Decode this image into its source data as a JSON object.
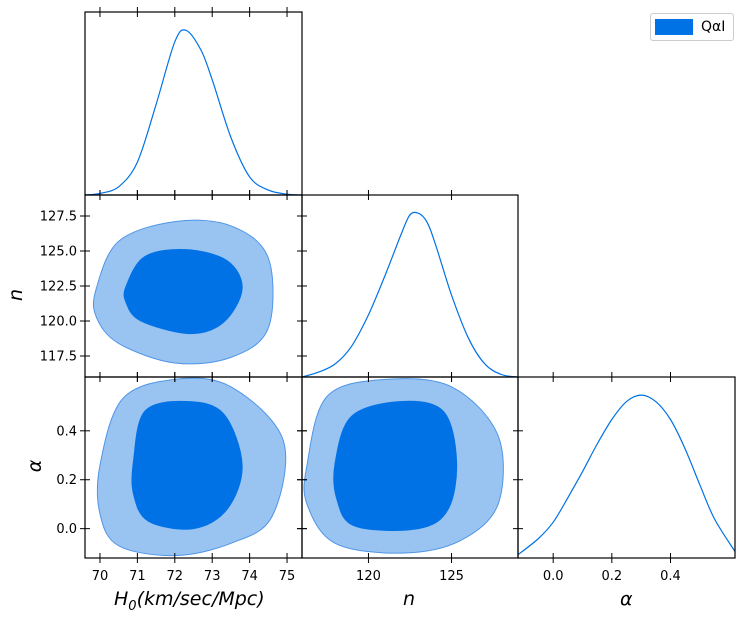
{
  "chart_data": {
    "type": "triangle-corner-plot",
    "legend": {
      "label": "QαI",
      "color": "#0072e6",
      "placement": "top-right"
    },
    "colors": {
      "inner": "#0072e6",
      "outer": "#99c4f2",
      "edge": "#4f95e6",
      "line": "#0072e6"
    },
    "labels": {
      "H0": {
        "base": "H",
        "sub": "0",
        "rest": "(km/sec/Mpc)"
      },
      "n": "n",
      "alpha": "α"
    },
    "ticks": {
      "H0": [
        "70",
        "71",
        "72",
        "73",
        "74",
        "75"
      ],
      "n_x": [
        "120",
        "125"
      ],
      "n_y": [
        "117.5",
        "120.0",
        "122.5",
        "125.0",
        "127.5"
      ],
      "alpha_x": [
        "0.0",
        "0.2",
        "0.4"
      ],
      "alpha_y": [
        "0.0",
        "0.2",
        "0.4"
      ]
    },
    "ranges": {
      "H0": [
        69.6,
        75.4
      ],
      "n": [
        116,
        129
      ],
      "alpha": [
        -0.12,
        0.62
      ]
    },
    "marginals": {
      "H0": {
        "x": [
          69.6,
          70.0,
          70.5,
          71.0,
          71.5,
          72.0,
          72.3,
          72.7,
          73.0,
          73.5,
          74.0,
          74.5,
          75.0,
          75.4
        ],
        "y": [
          0.0,
          0.01,
          0.05,
          0.2,
          0.55,
          0.93,
          1.0,
          0.88,
          0.7,
          0.35,
          0.11,
          0.03,
          0.005,
          0.0
        ]
      },
      "n": {
        "x": [
          116,
          117,
          118,
          119,
          120,
          121,
          122,
          122.5,
          123,
          123.5,
          124,
          125,
          126,
          127,
          128,
          129
        ],
        "y": [
          0.0,
          0.03,
          0.08,
          0.19,
          0.38,
          0.62,
          0.88,
          0.99,
          1.0,
          0.95,
          0.82,
          0.5,
          0.24,
          0.08,
          0.015,
          0.0
        ]
      },
      "alpha": {
        "x": [
          -0.12,
          -0.05,
          0.0,
          0.05,
          0.1,
          0.15,
          0.2,
          0.25,
          0.3,
          0.35,
          0.4,
          0.45,
          0.5,
          0.55,
          0.62
        ],
        "y": [
          0.02,
          0.12,
          0.22,
          0.37,
          0.53,
          0.7,
          0.85,
          0.96,
          1.0,
          0.96,
          0.85,
          0.67,
          0.45,
          0.24,
          0.04
        ]
      }
    },
    "contours": {
      "H0_n": {
        "outer": [
          [
            69.9,
            122.3
          ],
          [
            70.5,
            125.7
          ],
          [
            72.0,
            127.1
          ],
          [
            73.5,
            126.8
          ],
          [
            74.5,
            124.5
          ],
          [
            74.5,
            119.5
          ],
          [
            73.5,
            117.4
          ],
          [
            72.0,
            117.0
          ],
          [
            70.5,
            118.4
          ],
          [
            69.9,
            120.3
          ]
        ],
        "inner": [
          [
            70.7,
            122.5
          ],
          [
            71.2,
            124.6
          ],
          [
            72.3,
            125.1
          ],
          [
            73.4,
            124.3
          ],
          [
            73.8,
            122.3
          ],
          [
            73.3,
            119.9
          ],
          [
            72.4,
            119.1
          ],
          [
            71.1,
            120.0
          ],
          [
            70.7,
            121.3
          ]
        ]
      },
      "H0_alpha": {
        "outer": [
          [
            70.0,
            0.26
          ],
          [
            70.6,
            0.53
          ],
          [
            72.0,
            0.61
          ],
          [
            73.5,
            0.58
          ],
          [
            74.9,
            0.36
          ],
          [
            74.6,
            0.05
          ],
          [
            73.5,
            -0.06
          ],
          [
            72.0,
            -0.11
          ],
          [
            70.5,
            -0.07
          ],
          [
            70.0,
            0.06
          ]
        ],
        "inner": [
          [
            70.9,
            0.28
          ],
          [
            71.2,
            0.48
          ],
          [
            72.3,
            0.52
          ],
          [
            73.3,
            0.47
          ],
          [
            73.8,
            0.26
          ],
          [
            73.4,
            0.08
          ],
          [
            72.5,
            0.0
          ],
          [
            71.3,
            0.03
          ],
          [
            70.9,
            0.14
          ]
        ]
      },
      "n_alpha": {
        "outer": [
          [
            116.3,
            0.26
          ],
          [
            117.5,
            0.54
          ],
          [
            121.0,
            0.61
          ],
          [
            125.0,
            0.58
          ],
          [
            127.8,
            0.38
          ],
          [
            127.8,
            0.1
          ],
          [
            125.5,
            -0.05
          ],
          [
            122.0,
            -0.1
          ],
          [
            118.0,
            -0.06
          ],
          [
            116.3,
            0.1
          ]
        ],
        "inner": [
          [
            118.0,
            0.27
          ],
          [
            119.0,
            0.46
          ],
          [
            122.0,
            0.52
          ],
          [
            124.5,
            0.48
          ],
          [
            125.3,
            0.28
          ],
          [
            124.8,
            0.08
          ],
          [
            123.0,
            0.0
          ],
          [
            119.2,
            0.01
          ],
          [
            118.1,
            0.12
          ]
        ]
      }
    }
  }
}
